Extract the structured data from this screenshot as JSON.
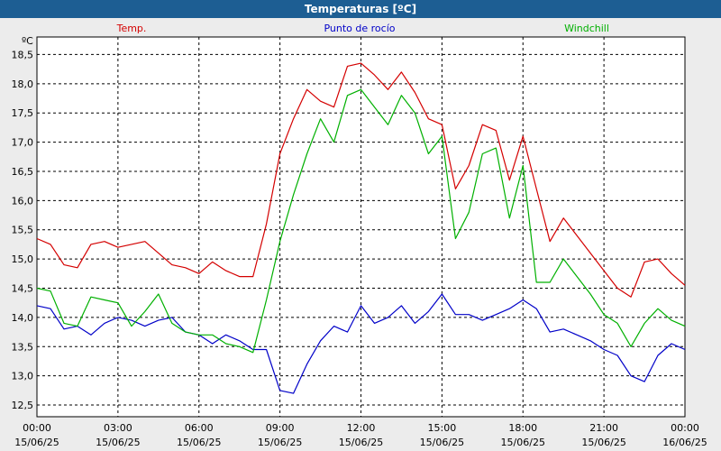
{
  "chart_data": {
    "type": "line",
    "title": "Temperaturas [ºC]",
    "unit_label": "ºC",
    "ylim": [
      12.3,
      18.8
    ],
    "y_ticks": [
      12.5,
      13.0,
      13.5,
      14.0,
      14.5,
      15.0,
      15.5,
      16.0,
      16.5,
      17.0,
      17.5,
      18.0,
      18.5
    ],
    "y_tick_labels": [
      "12,5",
      "13,0",
      "13,5",
      "14,0",
      "14,5",
      "15,0",
      "15,5",
      "16,0",
      "16,5",
      "17,0",
      "17,5",
      "18,0",
      "18,5"
    ],
    "x_ticks": [
      {
        "hour": 0,
        "time": "00:00",
        "date": "15/06/25"
      },
      {
        "hour": 3,
        "time": "03:00",
        "date": "15/06/25"
      },
      {
        "hour": 6,
        "time": "06:00",
        "date": "15/06/25"
      },
      {
        "hour": 9,
        "time": "09:00",
        "date": "15/06/25"
      },
      {
        "hour": 12,
        "time": "12:00",
        "date": "15/06/25"
      },
      {
        "hour": 15,
        "time": "15:00",
        "date": "15/06/25"
      },
      {
        "hour": 18,
        "time": "18:00",
        "date": "15/06/25"
      },
      {
        "hour": 21,
        "time": "21:00",
        "date": "15/06/25"
      },
      {
        "hour": 24,
        "time": "00:00",
        "date": "16/06/25"
      }
    ],
    "grid": true,
    "x": [
      0,
      0.5,
      1,
      1.5,
      2,
      2.5,
      3,
      3.5,
      4,
      4.5,
      5,
      5.5,
      6,
      6.5,
      7,
      7.5,
      8,
      8.5,
      9,
      9.5,
      10,
      10.5,
      11,
      11.5,
      12,
      12.5,
      13,
      13.5,
      14,
      14.5,
      15,
      15.5,
      16,
      16.5,
      17,
      17.5,
      18,
      18.5,
      19,
      19.5,
      20,
      20.5,
      21,
      21.5,
      22,
      22.5,
      23,
      23.5,
      24
    ],
    "series": [
      {
        "name": "Temp.",
        "color": "#d40000",
        "values": [
          15.35,
          15.25,
          14.9,
          14.85,
          15.25,
          15.3,
          15.2,
          15.25,
          15.3,
          15.1,
          14.9,
          14.85,
          14.75,
          14.95,
          14.8,
          14.7,
          14.7,
          15.6,
          16.8,
          17.4,
          17.9,
          17.7,
          17.6,
          18.3,
          18.35,
          18.15,
          17.9,
          18.2,
          17.85,
          17.4,
          17.3,
          16.2,
          16.6,
          17.3,
          17.2,
          16.35,
          17.1,
          16.2,
          15.3,
          15.7,
          15.4,
          15.1,
          14.8,
          14.5,
          14.35,
          14.95,
          15.0,
          14.75,
          14.55
        ]
      },
      {
        "name": "Punto de rocío",
        "color": "#0000c8",
        "values": [
          14.2,
          14.15,
          13.8,
          13.85,
          13.7,
          13.9,
          14.0,
          13.95,
          13.85,
          13.95,
          14.0,
          13.75,
          13.7,
          13.55,
          13.7,
          13.6,
          13.45,
          13.45,
          12.75,
          12.7,
          13.2,
          13.6,
          13.85,
          13.75,
          14.2,
          13.9,
          14.0,
          14.2,
          13.9,
          14.1,
          14.4,
          14.05,
          14.05,
          13.95,
          14.05,
          14.15,
          14.3,
          14.15,
          13.75,
          13.8,
          13.7,
          13.6,
          13.45,
          13.35,
          13.0,
          12.9,
          13.35,
          13.55,
          13.45
        ]
      },
      {
        "name": "Windchill",
        "color": "#00b000",
        "values": [
          14.5,
          14.45,
          13.9,
          13.85,
          14.35,
          14.3,
          14.25,
          13.85,
          14.1,
          14.4,
          13.9,
          13.75,
          13.7,
          13.7,
          13.55,
          13.5,
          13.4,
          14.3,
          15.3,
          16.1,
          16.8,
          17.4,
          17.0,
          17.8,
          17.9,
          17.6,
          17.3,
          17.8,
          17.5,
          16.8,
          17.1,
          15.35,
          15.8,
          16.8,
          16.9,
          15.7,
          16.6,
          14.6,
          14.6,
          15.0,
          14.7,
          14.4,
          14.05,
          13.9,
          13.5,
          13.9,
          14.15,
          13.95,
          13.85
        ]
      }
    ]
  }
}
